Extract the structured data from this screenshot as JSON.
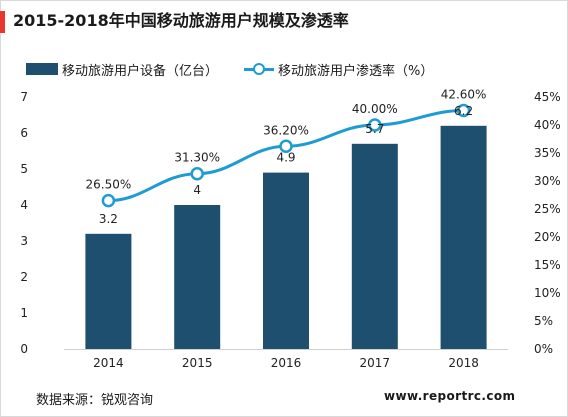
{
  "title": "2015-2018年中国移动旅游用户规模及渗透率",
  "source": "数据来源：锐观咨询",
  "website": "www.reportrc.com",
  "colors": {
    "bar": "#1e4f6e",
    "line": "#1f9bd3",
    "accent": "#e8382e",
    "axis": "#d0d0d0"
  },
  "chart_data": {
    "type": "bar",
    "categories": [
      "2014",
      "2015",
      "2016",
      "2017",
      "2018"
    ],
    "series": [
      {
        "name": "移动旅游用户设备（亿台）",
        "type": "bar",
        "axis": "left",
        "values": [
          3.2,
          4,
          4.9,
          5.7,
          6.2
        ],
        "labels": [
          "3.2",
          "4",
          "4.9",
          "5.7",
          "6.2"
        ]
      },
      {
        "name": "移动旅游用户渗透率（%）",
        "type": "line",
        "axis": "right",
        "values": [
          26.5,
          31.3,
          36.2,
          40.0,
          42.6
        ],
        "labels": [
          "26.50%",
          "31.30%",
          "36.20%",
          "40.00%",
          "42.60%"
        ]
      }
    ],
    "yleft": {
      "lim": [
        0,
        7
      ],
      "ticks": [
        "0",
        "1",
        "2",
        "3",
        "4",
        "5",
        "6",
        "7"
      ]
    },
    "yright": {
      "lim": [
        0,
        45
      ],
      "ticks": [
        "0%",
        "5%",
        "10%",
        "15%",
        "20%",
        "25%",
        "30%",
        "35%",
        "40%",
        "45%"
      ]
    },
    "grid": false,
    "legend_position": "top-left"
  }
}
